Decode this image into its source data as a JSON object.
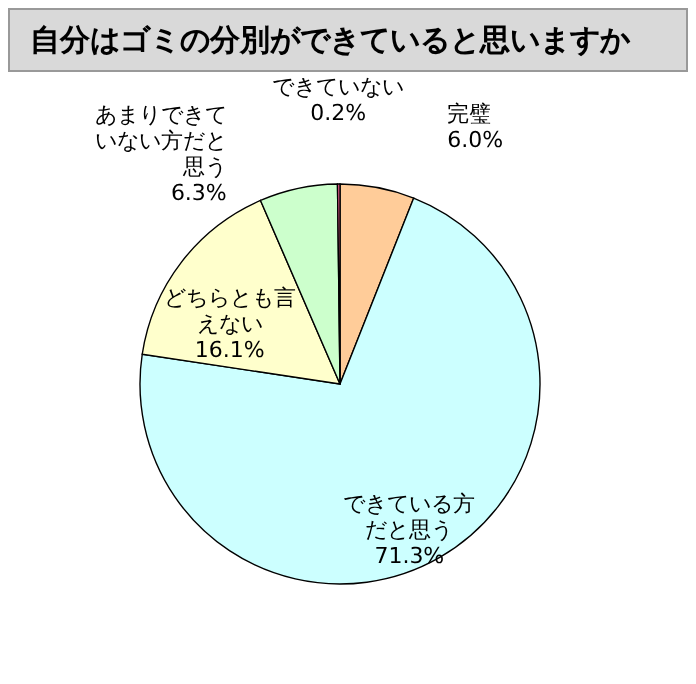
{
  "chart_data": {
    "type": "pie",
    "title": "自分はゴミの分別ができていると思いますか",
    "categories": [
      "完璧",
      "できている方だと思う",
      "どちらとも言えない",
      "あまりできていない方だと思う",
      "できていない"
    ],
    "values": [
      6.0,
      71.3,
      16.1,
      6.3,
      0.2
    ],
    "value_labels": [
      "6.0%",
      "71.3%",
      "16.1%",
      "6.3%",
      "0.2%"
    ],
    "colors": [
      "#ffcc99",
      "#ccffff",
      "#ffffcc",
      "#ccffcc",
      "#ff6699"
    ],
    "legend": false
  }
}
